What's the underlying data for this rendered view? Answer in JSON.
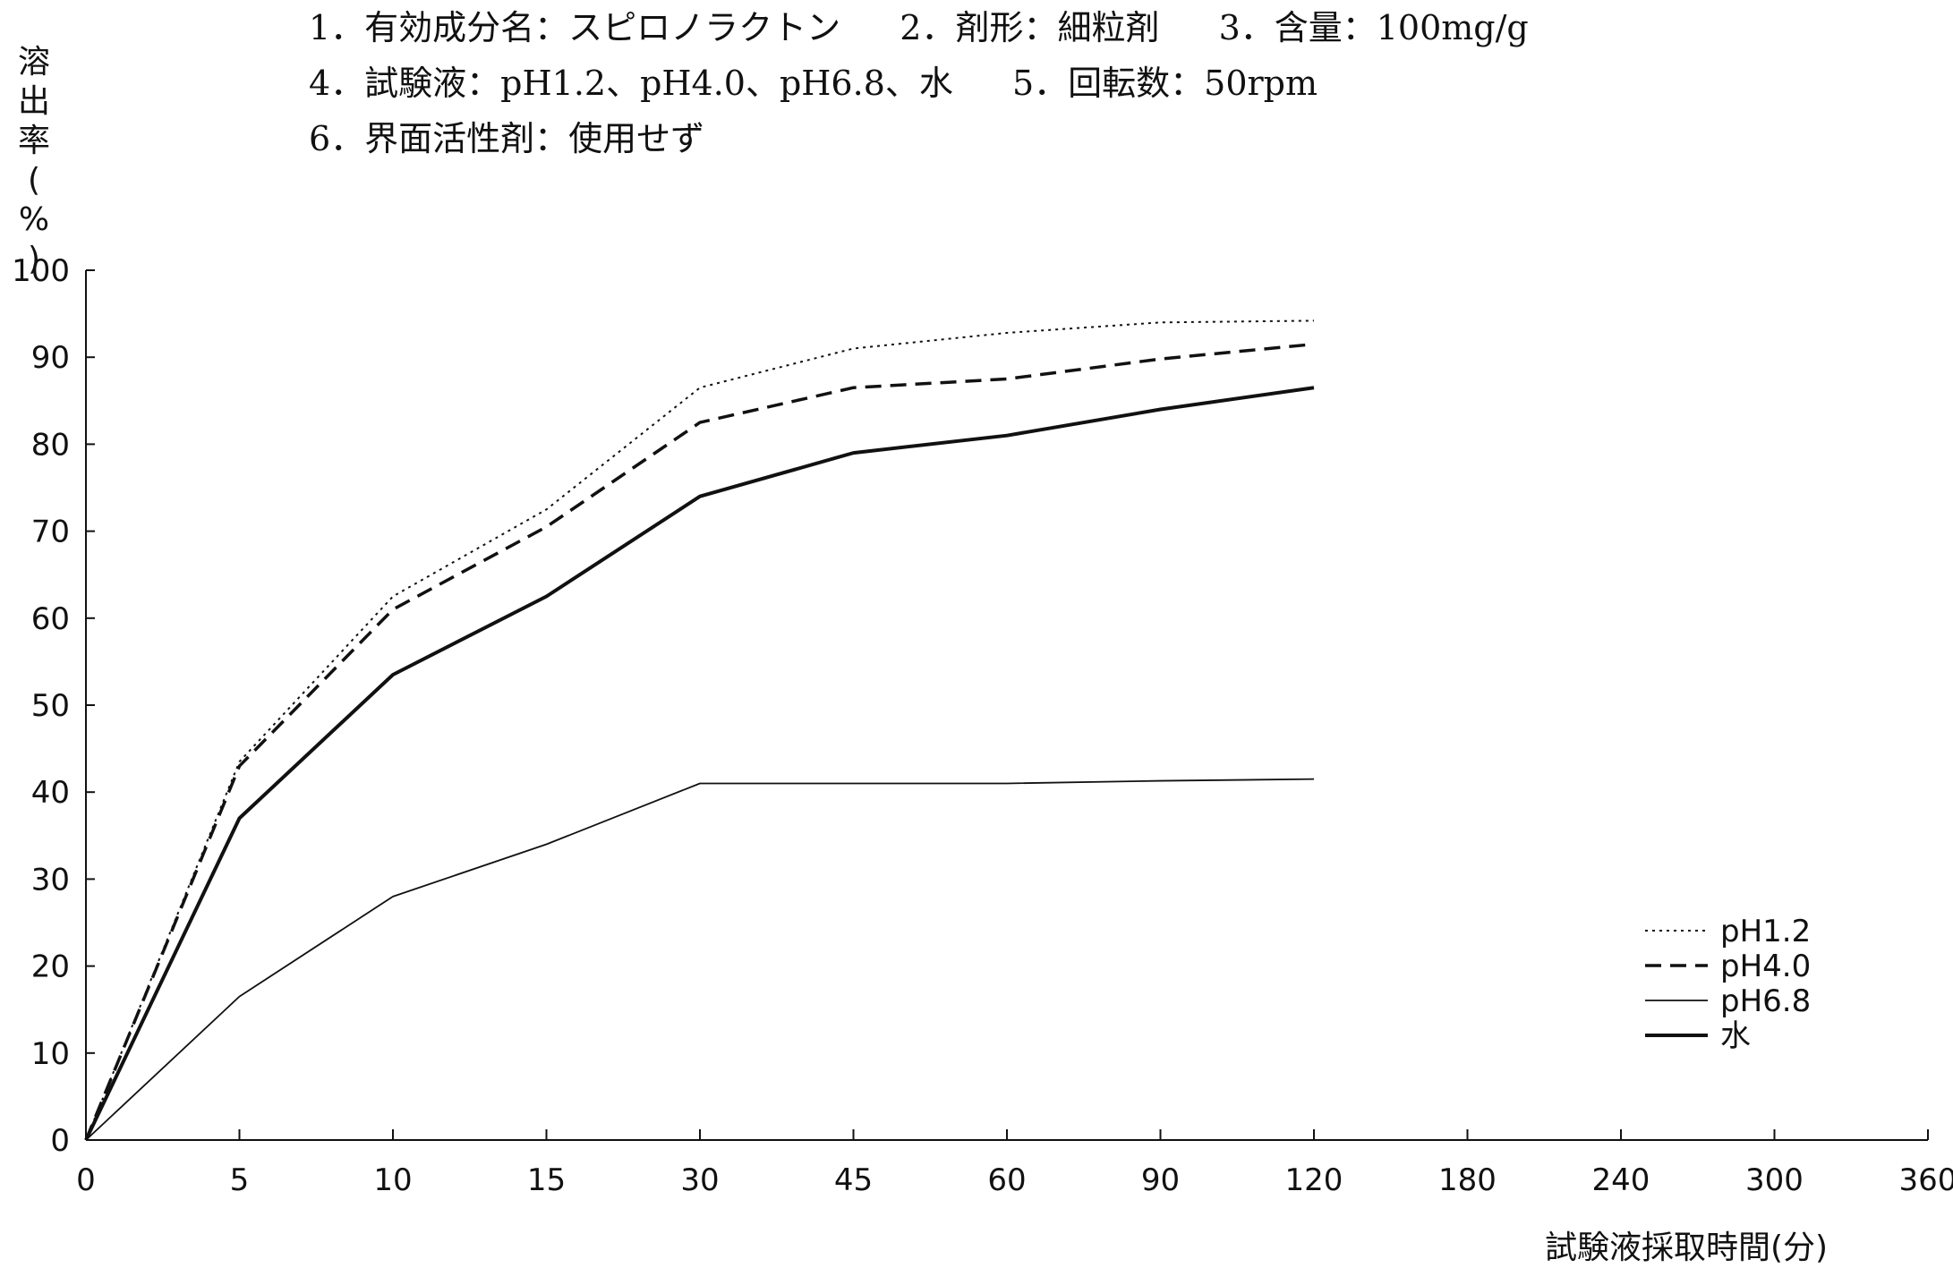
{
  "conditions": [
    [
      "1．有効成分名：スピロノラクトン",
      "2．剤形：細粒剤",
      "3．含量：100mg/g"
    ],
    [
      "4．試験液：pH1.2、pH4.0、pH6.8、水",
      "5．回転数：50rpm"
    ],
    [
      "6．界面活性剤：使用せず"
    ]
  ],
  "chart_data": {
    "type": "line",
    "title": "",
    "xlabel": "試験液採取時間(分)",
    "ylabel": "溶出率(%)",
    "categories": [
      "0",
      "5",
      "10",
      "15",
      "30",
      "45",
      "60",
      "90",
      "120",
      "180",
      "240",
      "300",
      "360"
    ],
    "yticks": [
      "0",
      "10",
      "20",
      "30",
      "40",
      "50",
      "60",
      "70",
      "80",
      "90",
      "100"
    ],
    "ylim": [
      0,
      100
    ],
    "grid": false,
    "legend_position": "bottom-right",
    "series": [
      {
        "name": "pH1.2",
        "style": "dotted",
        "values": [
          0,
          43.5,
          62.5,
          72.5,
          86.5,
          91.0,
          92.8,
          94.0,
          94.2,
          null,
          null,
          null,
          null
        ]
      },
      {
        "name": "pH4.0",
        "style": "dashed",
        "values": [
          0,
          43.0,
          61.0,
          70.5,
          82.5,
          86.5,
          87.5,
          89.8,
          91.5,
          null,
          null,
          null,
          null
        ]
      },
      {
        "name": "pH6.8",
        "style": "thin-solid",
        "values": [
          0,
          16.5,
          28.0,
          34.0,
          41.0,
          41.0,
          41.0,
          41.3,
          41.5,
          null,
          null,
          null,
          null
        ]
      },
      {
        "name": "水",
        "style": "thick-solid",
        "values": [
          0,
          37.0,
          53.5,
          62.5,
          74.0,
          79.0,
          81.0,
          84.0,
          86.5,
          null,
          null,
          null,
          null
        ]
      }
    ]
  }
}
